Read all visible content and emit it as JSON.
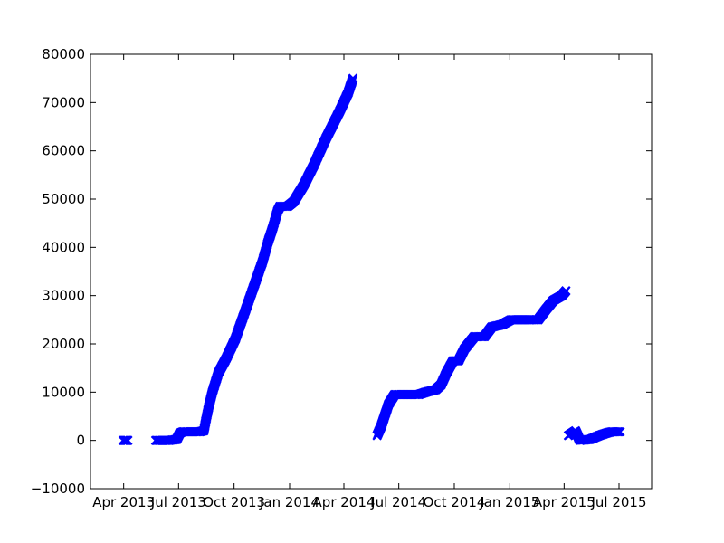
{
  "chart_data": {
    "type": "scatter",
    "title": "",
    "xlabel": "",
    "ylabel": "",
    "marker": "x",
    "color": "#0000ff",
    "grid": false,
    "xlim": [
      "2013-02-05",
      "2015-08-24"
    ],
    "ylim": [
      -10000,
      80000
    ],
    "x_tick_labels": [
      "Apr 2013",
      "Jul 2013",
      "Oct 2013",
      "Jan 2014",
      "Apr 2014",
      "Jul 2014",
      "Oct 2014",
      "Jan 2015",
      "Apr 2015",
      "Jul 2015"
    ],
    "x_ticks": [
      "2013-04-01",
      "2013-07-01",
      "2013-10-01",
      "2014-01-01",
      "2014-04-01",
      "2014-07-01",
      "2014-10-01",
      "2015-01-01",
      "2015-04-01",
      "2015-07-01"
    ],
    "y_tick_labels": [
      "−10000",
      "0",
      "10000",
      "20000",
      "30000",
      "40000",
      "50000",
      "60000",
      "70000",
      "80000"
    ],
    "y_ticks": [
      -10000,
      0,
      10000,
      20000,
      30000,
      40000,
      50000,
      60000,
      70000,
      80000
    ],
    "segments": [
      {
        "points": [
          [
            "2013-03-31",
            0
          ],
          [
            "2013-04-05",
            0
          ],
          [
            "2013-04-08",
            0
          ]
        ]
      },
      {
        "points": [
          [
            "2013-05-24",
            0
          ],
          [
            "2013-06-15",
            0
          ],
          [
            "2013-06-28",
            200
          ],
          [
            "2013-07-03",
            1500
          ],
          [
            "2013-07-08",
            1800
          ],
          [
            "2013-07-20",
            1800
          ],
          [
            "2013-08-05",
            1800
          ],
          [
            "2013-08-12",
            2000
          ],
          [
            "2013-08-15",
            4000
          ],
          [
            "2013-08-20",
            7000
          ],
          [
            "2013-08-26",
            10000
          ],
          [
            "2013-09-05",
            14000
          ],
          [
            "2013-09-18",
            17000
          ],
          [
            "2013-10-03",
            21000
          ],
          [
            "2013-10-20",
            27000
          ],
          [
            "2013-11-03",
            32000
          ],
          [
            "2013-11-17",
            37000
          ],
          [
            "2013-11-26",
            41000
          ],
          [
            "2013-12-04",
            44000
          ],
          [
            "2013-12-12",
            47500
          ],
          [
            "2013-12-16",
            48500
          ],
          [
            "2013-12-29",
            48500
          ],
          [
            "2014-01-08",
            49500
          ],
          [
            "2014-01-25",
            53000
          ],
          [
            "2014-02-10",
            57000
          ],
          [
            "2014-02-28",
            62000
          ],
          [
            "2014-03-16",
            66000
          ],
          [
            "2014-03-26",
            68500
          ],
          [
            "2014-04-08",
            72000
          ],
          [
            "2014-04-16",
            75000
          ]
        ]
      },
      {
        "points": [
          [
            "2014-05-26",
            1000
          ],
          [
            "2014-06-02",
            3000
          ],
          [
            "2014-06-06",
            4500
          ],
          [
            "2014-06-14",
            7500
          ],
          [
            "2014-06-24",
            9500
          ],
          [
            "2014-07-16",
            9500
          ],
          [
            "2014-08-03",
            9500
          ],
          [
            "2014-08-15",
            10000
          ],
          [
            "2014-08-31",
            10500
          ],
          [
            "2014-09-09",
            11500
          ],
          [
            "2014-09-18",
            14000
          ],
          [
            "2014-09-29",
            16500
          ],
          [
            "2014-10-08",
            16500
          ],
          [
            "2014-10-18",
            19000
          ],
          [
            "2014-11-03",
            21500
          ],
          [
            "2014-11-20",
            21500
          ],
          [
            "2014-12-02",
            23500
          ],
          [
            "2014-12-19",
            24000
          ],
          [
            "2015-01-03",
            25000
          ],
          [
            "2015-02-02",
            25000
          ],
          [
            "2015-02-17",
            25000
          ],
          [
            "2015-03-01",
            27000
          ],
          [
            "2015-03-14",
            29000
          ],
          [
            "2015-03-28",
            30000
          ],
          [
            "2015-04-04",
            31000
          ]
        ]
      },
      {
        "points": [
          [
            "2015-04-08",
            1000
          ],
          [
            "2015-04-14",
            1500
          ],
          [
            "2015-04-20",
            2000
          ],
          [
            "2015-04-27",
            0
          ],
          [
            "2015-05-14",
            200
          ],
          [
            "2015-05-29",
            1000
          ],
          [
            "2015-06-10",
            1500
          ],
          [
            "2015-06-19",
            1800
          ],
          [
            "2015-07-03",
            1800
          ]
        ]
      }
    ]
  }
}
